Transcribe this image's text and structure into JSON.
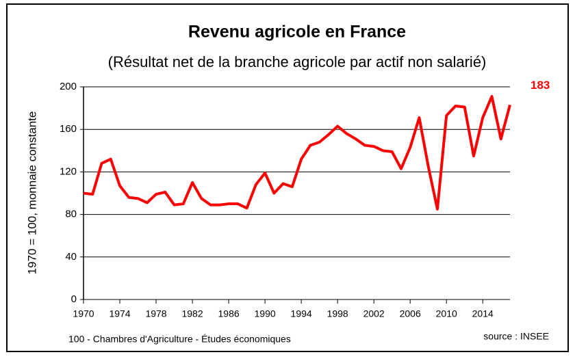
{
  "chart_data": {
    "type": "line",
    "title": "Revenu agricole en France",
    "subtitle": "(Résultat net de la branche agricole par actif non salarié)",
    "y_label": "1970 = 100, monnaie constante",
    "footer_left": "100 - Chambres d'Agriculture - Études économiques",
    "footer_right": "source : INSEE",
    "x": [
      1970,
      1971,
      1972,
      1973,
      1974,
      1975,
      1976,
      1977,
      1978,
      1979,
      1980,
      1981,
      1982,
      1983,
      1984,
      1985,
      1986,
      1987,
      1988,
      1989,
      1990,
      1991,
      1992,
      1993,
      1994,
      1995,
      1996,
      1997,
      1998,
      1999,
      2000,
      2001,
      2002,
      2003,
      2004,
      2005,
      2006,
      2007,
      2008,
      2009,
      2010,
      2011,
      2012,
      2013,
      2014,
      2015,
      2016,
      2017
    ],
    "series": [
      {
        "color": "#ff0000",
        "values": [
          100,
          99,
          128,
          132,
          107,
          96,
          95,
          91,
          99,
          101,
          89,
          90,
          110,
          95,
          89,
          89,
          90,
          90,
          86,
          108,
          119,
          100,
          109,
          106,
          132,
          145,
          148,
          155,
          163,
          156,
          151,
          145,
          144,
          140,
          139,
          123,
          143,
          171,
          125,
          85,
          173,
          182,
          181,
          135,
          171,
          191,
          151,
          183
        ]
      }
    ],
    "xlim": [
      1970,
      2017
    ],
    "xticks": [
      1970,
      1974,
      1978,
      1982,
      1986,
      1990,
      1994,
      1998,
      2002,
      2006,
      2010,
      2014
    ],
    "ylim": [
      0,
      200
    ],
    "yticks": [
      0,
      40,
      80,
      120,
      160,
      200
    ],
    "grid": true
  }
}
